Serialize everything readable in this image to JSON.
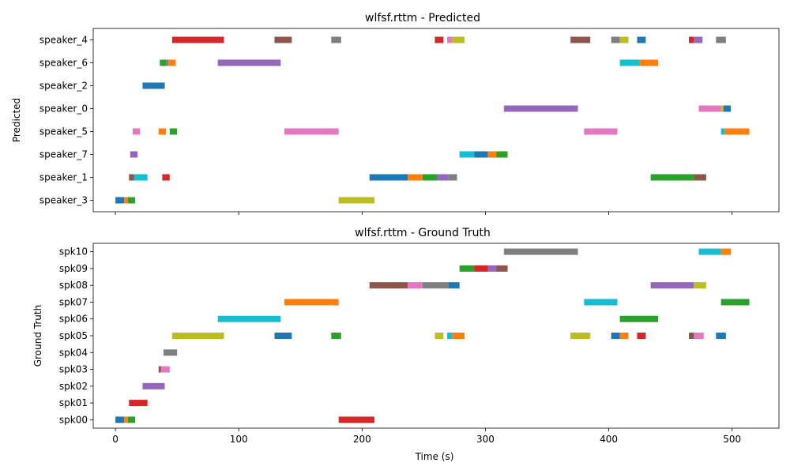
{
  "chart_data": [
    {
      "type": "timeline",
      "title": "wlfsf.rttm - Predicted",
      "ylabel": "Predicted",
      "xlabel": "",
      "xlim": [
        -18,
        538
      ],
      "xticks": [
        0,
        100,
        200,
        300,
        400,
        500
      ],
      "show_xtick_labels": false,
      "rows": [
        "speaker_4",
        "speaker_6",
        "speaker_2",
        "speaker_0",
        "speaker_5",
        "speaker_7",
        "speaker_1",
        "speaker_3"
      ],
      "segments": [
        {
          "row": "speaker_4",
          "start": 46,
          "end": 88,
          "color": "#d62728"
        },
        {
          "row": "speaker_4",
          "start": 129,
          "end": 143,
          "color": "#8c564b"
        },
        {
          "row": "speaker_4",
          "start": 175,
          "end": 183,
          "color": "#7f7f7f"
        },
        {
          "row": "speaker_4",
          "start": 259,
          "end": 266,
          "color": "#d62728"
        },
        {
          "row": "speaker_4",
          "start": 269,
          "end": 273,
          "color": "#e377c2"
        },
        {
          "row": "speaker_4",
          "start": 273,
          "end": 283,
          "color": "#bcbd22"
        },
        {
          "row": "speaker_4",
          "start": 369,
          "end": 385,
          "color": "#8c564b"
        },
        {
          "row": "speaker_4",
          "start": 402,
          "end": 409,
          "color": "#7f7f7f"
        },
        {
          "row": "speaker_4",
          "start": 409,
          "end": 416,
          "color": "#bcbd22"
        },
        {
          "row": "speaker_4",
          "start": 423,
          "end": 430,
          "color": "#1f77b4"
        },
        {
          "row": "speaker_4",
          "start": 465,
          "end": 469,
          "color": "#d62728"
        },
        {
          "row": "speaker_4",
          "start": 469,
          "end": 476,
          "color": "#9467bd"
        },
        {
          "row": "speaker_4",
          "start": 487,
          "end": 495,
          "color": "#7f7f7f"
        },
        {
          "row": "speaker_6",
          "start": 36,
          "end": 41,
          "color": "#2ca02c"
        },
        {
          "row": "speaker_6",
          "start": 41,
          "end": 43,
          "color": "#7f7f7f"
        },
        {
          "row": "speaker_6",
          "start": 43,
          "end": 49,
          "color": "#ff7f0e"
        },
        {
          "row": "speaker_6",
          "start": 83,
          "end": 134,
          "color": "#9467bd"
        },
        {
          "row": "speaker_6",
          "start": 409,
          "end": 425,
          "color": "#17becf"
        },
        {
          "row": "speaker_6",
          "start": 425,
          "end": 440,
          "color": "#ff7f0e"
        },
        {
          "row": "speaker_2",
          "start": 22,
          "end": 40,
          "color": "#1f77b4"
        },
        {
          "row": "speaker_0",
          "start": 315,
          "end": 375,
          "color": "#9467bd"
        },
        {
          "row": "speaker_0",
          "start": 473,
          "end": 491,
          "color": "#e377c2"
        },
        {
          "row": "speaker_0",
          "start": 491,
          "end": 493,
          "color": "#bcbd22"
        },
        {
          "row": "speaker_0",
          "start": 493,
          "end": 499,
          "color": "#1f77b4"
        },
        {
          "row": "speaker_5",
          "start": 14,
          "end": 20,
          "color": "#e377c2"
        },
        {
          "row": "speaker_5",
          "start": 35,
          "end": 41,
          "color": "#ff7f0e"
        },
        {
          "row": "speaker_5",
          "start": 44,
          "end": 50,
          "color": "#2ca02c"
        },
        {
          "row": "speaker_5",
          "start": 137,
          "end": 181,
          "color": "#e377c2"
        },
        {
          "row": "speaker_5",
          "start": 380,
          "end": 407,
          "color": "#e377c2"
        },
        {
          "row": "speaker_5",
          "start": 491,
          "end": 494,
          "color": "#17becf"
        },
        {
          "row": "speaker_5",
          "start": 494,
          "end": 514,
          "color": "#ff7f0e"
        },
        {
          "row": "speaker_7",
          "start": 12,
          "end": 18,
          "color": "#9467bd"
        },
        {
          "row": "speaker_7",
          "start": 279,
          "end": 291,
          "color": "#17becf"
        },
        {
          "row": "speaker_7",
          "start": 291,
          "end": 302,
          "color": "#1f77b4"
        },
        {
          "row": "speaker_7",
          "start": 302,
          "end": 309,
          "color": "#ff7f0e"
        },
        {
          "row": "speaker_7",
          "start": 309,
          "end": 318,
          "color": "#2ca02c"
        },
        {
          "row": "speaker_1",
          "start": 11,
          "end": 15,
          "color": "#8c564b"
        },
        {
          "row": "speaker_1",
          "start": 15,
          "end": 26,
          "color": "#17becf"
        },
        {
          "row": "speaker_1",
          "start": 38,
          "end": 44,
          "color": "#d62728"
        },
        {
          "row": "speaker_1",
          "start": 206,
          "end": 237,
          "color": "#1f77b4"
        },
        {
          "row": "speaker_1",
          "start": 237,
          "end": 249,
          "color": "#ff7f0e"
        },
        {
          "row": "speaker_1",
          "start": 249,
          "end": 261,
          "color": "#2ca02c"
        },
        {
          "row": "speaker_1",
          "start": 261,
          "end": 270,
          "color": "#9467bd"
        },
        {
          "row": "speaker_1",
          "start": 270,
          "end": 277,
          "color": "#7f7f7f"
        },
        {
          "row": "speaker_1",
          "start": 434,
          "end": 469,
          "color": "#2ca02c"
        },
        {
          "row": "speaker_1",
          "start": 469,
          "end": 479,
          "color": "#8c564b"
        },
        {
          "row": "speaker_3",
          "start": 0,
          "end": 7,
          "color": "#1f77b4"
        },
        {
          "row": "speaker_3",
          "start": 7,
          "end": 10,
          "color": "#ff7f0e"
        },
        {
          "row": "speaker_3",
          "start": 10,
          "end": 16,
          "color": "#2ca02c"
        },
        {
          "row": "speaker_3",
          "start": 181,
          "end": 210,
          "color": "#bcbd22"
        }
      ]
    },
    {
      "type": "timeline",
      "title": "wlfsf.rttm - Ground Truth",
      "ylabel": "Ground Truth",
      "xlabel": "Time (s)",
      "xlim": [
        -18,
        538
      ],
      "xticks": [
        0,
        100,
        200,
        300,
        400,
        500
      ],
      "show_xtick_labels": true,
      "rows": [
        "spk10",
        "spk09",
        "spk08",
        "spk07",
        "spk06",
        "spk05",
        "spk04",
        "spk03",
        "spk02",
        "spk01",
        "spk00"
      ],
      "segments": [
        {
          "row": "spk10",
          "start": 315,
          "end": 375,
          "color": "#7f7f7f"
        },
        {
          "row": "spk10",
          "start": 473,
          "end": 491,
          "color": "#17becf"
        },
        {
          "row": "spk10",
          "start": 491,
          "end": 499,
          "color": "#ff7f0e"
        },
        {
          "row": "spk09",
          "start": 279,
          "end": 291,
          "color": "#2ca02c"
        },
        {
          "row": "spk09",
          "start": 291,
          "end": 302,
          "color": "#d62728"
        },
        {
          "row": "spk09",
          "start": 302,
          "end": 309,
          "color": "#9467bd"
        },
        {
          "row": "spk09",
          "start": 309,
          "end": 318,
          "color": "#8c564b"
        },
        {
          "row": "spk08",
          "start": 206,
          "end": 237,
          "color": "#8c564b"
        },
        {
          "row": "spk08",
          "start": 237,
          "end": 249,
          "color": "#e377c2"
        },
        {
          "row": "spk08",
          "start": 249,
          "end": 270,
          "color": "#7f7f7f"
        },
        {
          "row": "spk08",
          "start": 270,
          "end": 279,
          "color": "#1f77b4"
        },
        {
          "row": "spk08",
          "start": 434,
          "end": 469,
          "color": "#9467bd"
        },
        {
          "row": "spk08",
          "start": 469,
          "end": 479,
          "color": "#bcbd22"
        },
        {
          "row": "spk07",
          "start": 137,
          "end": 181,
          "color": "#ff7f0e"
        },
        {
          "row": "spk07",
          "start": 380,
          "end": 407,
          "color": "#17becf"
        },
        {
          "row": "spk07",
          "start": 491,
          "end": 514,
          "color": "#2ca02c"
        },
        {
          "row": "spk06",
          "start": 83,
          "end": 134,
          "color": "#17becf"
        },
        {
          "row": "spk06",
          "start": 409,
          "end": 440,
          "color": "#2ca02c"
        },
        {
          "row": "spk05",
          "start": 46,
          "end": 88,
          "color": "#bcbd22"
        },
        {
          "row": "spk05",
          "start": 129,
          "end": 143,
          "color": "#1f77b4"
        },
        {
          "row": "spk05",
          "start": 175,
          "end": 183,
          "color": "#2ca02c"
        },
        {
          "row": "spk05",
          "start": 259,
          "end": 266,
          "color": "#bcbd22"
        },
        {
          "row": "spk05",
          "start": 269,
          "end": 273,
          "color": "#17becf"
        },
        {
          "row": "spk05",
          "start": 273,
          "end": 283,
          "color": "#ff7f0e"
        },
        {
          "row": "spk05",
          "start": 369,
          "end": 385,
          "color": "#bcbd22"
        },
        {
          "row": "spk05",
          "start": 402,
          "end": 409,
          "color": "#1f77b4"
        },
        {
          "row": "spk05",
          "start": 409,
          "end": 416,
          "color": "#ff7f0e"
        },
        {
          "row": "spk05",
          "start": 423,
          "end": 430,
          "color": "#d62728"
        },
        {
          "row": "spk05",
          "start": 465,
          "end": 469,
          "color": "#8c564b"
        },
        {
          "row": "spk05",
          "start": 469,
          "end": 477,
          "color": "#e377c2"
        },
        {
          "row": "spk05",
          "start": 487,
          "end": 495,
          "color": "#1f77b4"
        },
        {
          "row": "spk04",
          "start": 39,
          "end": 50,
          "color": "#7f7f7f"
        },
        {
          "row": "spk03",
          "start": 35,
          "end": 37,
          "color": "#8c564b"
        },
        {
          "row": "spk03",
          "start": 37,
          "end": 44,
          "color": "#e377c2"
        },
        {
          "row": "spk02",
          "start": 22,
          "end": 40,
          "color": "#9467bd"
        },
        {
          "row": "spk01",
          "start": 11,
          "end": 26,
          "color": "#d62728"
        },
        {
          "row": "spk00",
          "start": 0,
          "end": 7,
          "color": "#1f77b4"
        },
        {
          "row": "spk00",
          "start": 7,
          "end": 10,
          "color": "#ff7f0e"
        },
        {
          "row": "spk00",
          "start": 10,
          "end": 16,
          "color": "#2ca02c"
        },
        {
          "row": "spk00",
          "start": 181,
          "end": 210,
          "color": "#d62728"
        }
      ]
    }
  ]
}
